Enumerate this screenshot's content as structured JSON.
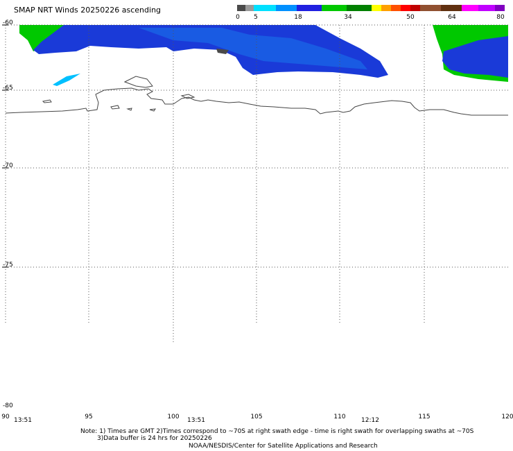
{
  "title": "SMAP NRT Winds 20250226 ascending",
  "colorbar": {
    "labels": [
      "0",
      "5",
      "18",
      "34",
      "50",
      "64",
      "80"
    ],
    "segments": [
      "#4a4a4a",
      "#9a9a9a",
      "#00e0ff",
      "#0090ff",
      "#2020e0",
      "#00c800",
      "#008000",
      "#ffff00",
      "#ffa000",
      "#ff5000",
      "#ff0000",
      "#c00000",
      "#905030",
      "#603010",
      "#ff00ff",
      "#c000ff",
      "#8000c0"
    ]
  },
  "lat_labels": [
    "-60",
    "-65",
    "-70",
    "-75",
    "-80"
  ],
  "lon_labels": [
    "90",
    "95",
    "100",
    "105",
    "110",
    "115",
    "120"
  ],
  "time_labels": [
    "13:51",
    "13:51",
    "12:12"
  ],
  "notes": {
    "line1": "Note: 1) Times are GMT 2)Times correspond to ~70S at right swath edge - time is right swath for overlapping swaths at ~70S",
    "line2": "3)Data buffer is 24 hrs for 20250226",
    "line3": "NOAA/NESDIS/Center for Satellite Applications and Research"
  }
}
